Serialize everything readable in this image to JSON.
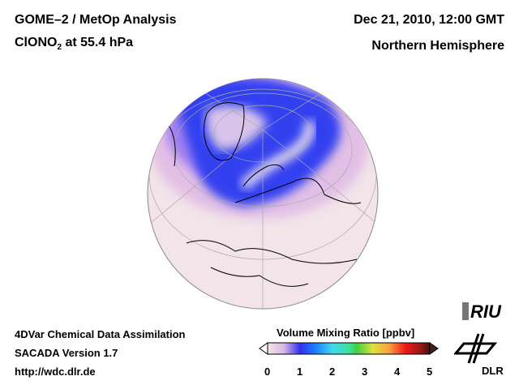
{
  "header": {
    "title_line1": "GOME–2 / MetOp Analysis",
    "species_main": "ClONO",
    "species_sub": "2",
    "species_rest": " at 55.4 hPa",
    "date": "Dec 21, 2010, 12:00 GMT",
    "region": "Northern Hemisphere"
  },
  "footer": {
    "line1": "4DVar Chemical Data Assimilation",
    "line2": "SACADA Version 1.7",
    "line3": "http://wdc.dlr.de"
  },
  "colorbar": {
    "title": "Volume Mixing Ratio [ppbv]",
    "ticks": [
      "0",
      "1",
      "2",
      "3",
      "4",
      "5"
    ],
    "range": [
      0,
      5
    ],
    "colors": [
      "#f3e6ea",
      "#d8b8e0",
      "#3030f0",
      "#2070ff",
      "#40d8f0",
      "#40e0a0",
      "#40d040",
      "#e0e040",
      "#f8a040",
      "#f01818",
      "#b01818",
      "#401010"
    ]
  },
  "logos": {
    "riu": "RIU",
    "dlr": "DLR"
  },
  "map": {
    "ocean_color": "#f2e4e8",
    "low_color": "#2a3ef0",
    "mid_color": "#9a7af0"
  }
}
